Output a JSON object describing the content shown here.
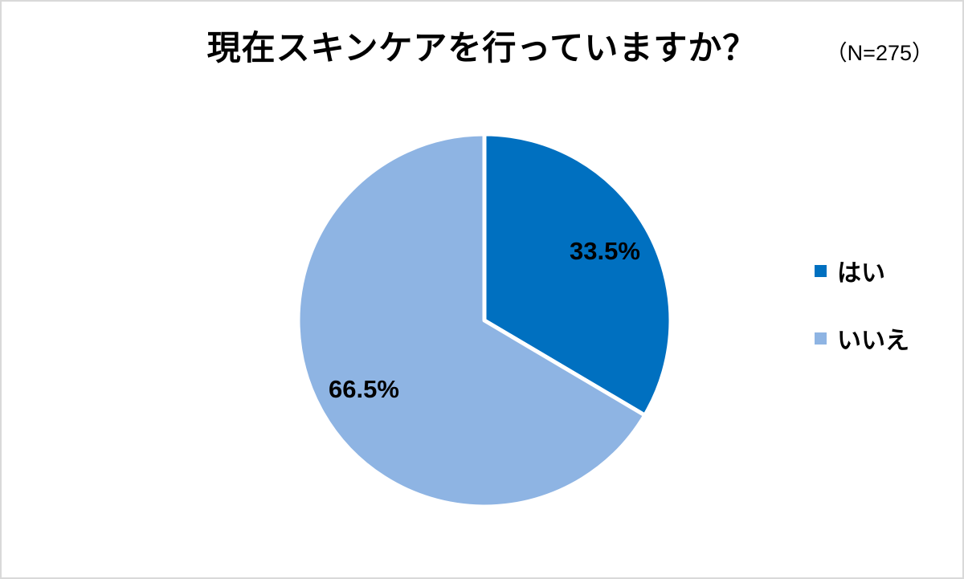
{
  "header": {
    "title": "現在スキンケアを行っていますか？",
    "sample_label": "（N=275）"
  },
  "chart_data": {
    "type": "pie",
    "title": "現在スキンケアを行っていますか？",
    "sample_size": 275,
    "start_angle_deg": 0,
    "direction": "clockwise",
    "legend_position": "right",
    "separator_color": "#FFFFFF",
    "value_label_color": "#000000",
    "slices": [
      {
        "label": "はい",
        "value": 33.5,
        "label_text": "33.5%",
        "color": "#0070C0"
      },
      {
        "label": "いいえ",
        "value": 66.5,
        "label_text": "66.5%",
        "color": "#8EB4E3"
      }
    ]
  },
  "canvas": {
    "background": "#FFFFFF",
    "border_color": "#D9D9D9"
  }
}
